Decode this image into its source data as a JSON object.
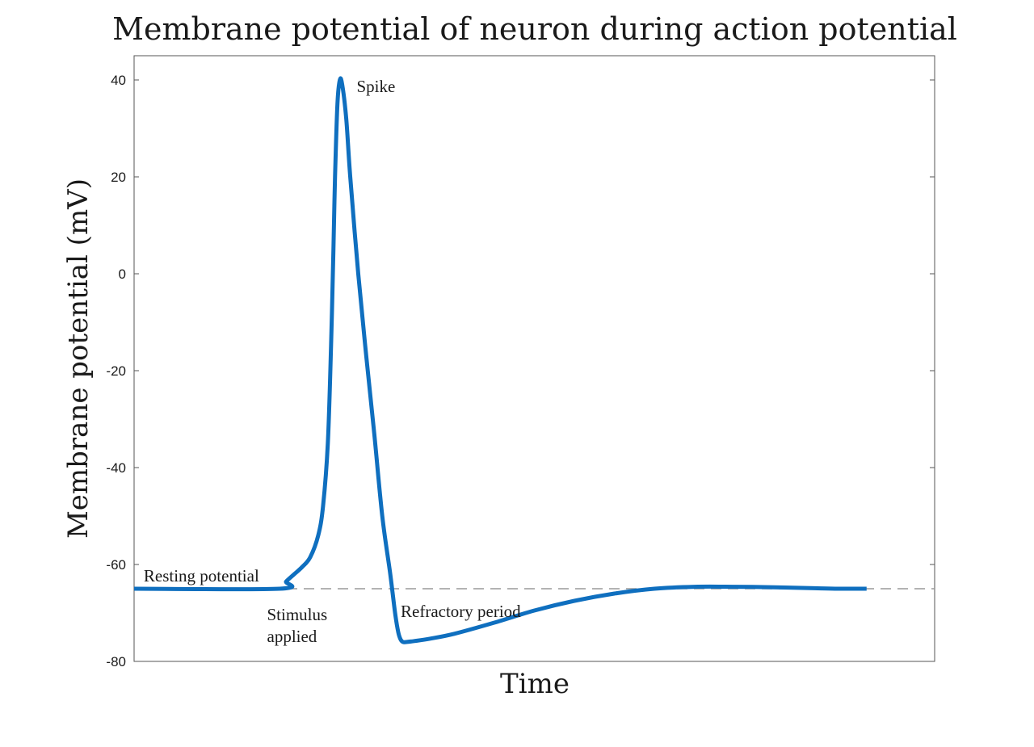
{
  "chart_data": {
    "type": "line",
    "title": "Membrane potential of neuron during action potential",
    "xlabel": "Time",
    "ylabel": "Membrane potential (mV)",
    "ylim": [
      -80,
      45
    ],
    "xlim": [
      0,
      100
    ],
    "yticks": [
      40,
      20,
      0,
      -20,
      -40,
      -60,
      -80
    ],
    "ytick_labels": [
      "40",
      "20",
      "0",
      "-20",
      "-40",
      "-60",
      "-80"
    ],
    "grid": false,
    "series_color": "#0f6fbf",
    "reference_color": "#9a9a9a",
    "reference_line": {
      "y": -65,
      "style": "dashed"
    },
    "series": [
      {
        "x": [
          0,
          18.2,
          19,
          20,
          21,
          22,
          23,
          23.6,
          24.2,
          24.6,
          24.9,
          25.1,
          25.4,
          25.7,
          26,
          26.5,
          27,
          28,
          29,
          30,
          31,
          32,
          32.6,
          33,
          33.3,
          33.6,
          34,
          35,
          37,
          40,
          45,
          50,
          55,
          60,
          65,
          70,
          75,
          80,
          85,
          88,
          91.5
        ],
        "y": [
          -65,
          -65,
          -63.5,
          -62,
          -60.5,
          -58.5,
          -54,
          -48,
          -35,
          -15,
          5,
          20,
          35,
          40,
          39,
          32,
          20,
          0,
          -17,
          -33,
          -50,
          -62,
          -70,
          -74,
          -75.5,
          -76,
          -76,
          -75.8,
          -75.3,
          -74.3,
          -72,
          -69.5,
          -67.5,
          -66,
          -65,
          -64.6,
          -64.6,
          -64.7,
          -64.9,
          -65,
          -65
        ]
      }
    ],
    "annotations": [
      {
        "lines": [
          "Spike"
        ],
        "x": 27.8,
        "y": 37.5
      },
      {
        "lines": [
          "Resting potential"
        ],
        "x": 1.2,
        "y": -63.5
      },
      {
        "lines": [
          "Stimulus",
          "applied"
        ],
        "x": 16.6,
        "y": -71.5
      },
      {
        "lines": [
          "Refractory period"
        ],
        "x": 33.3,
        "y": -70.8
      }
    ]
  }
}
